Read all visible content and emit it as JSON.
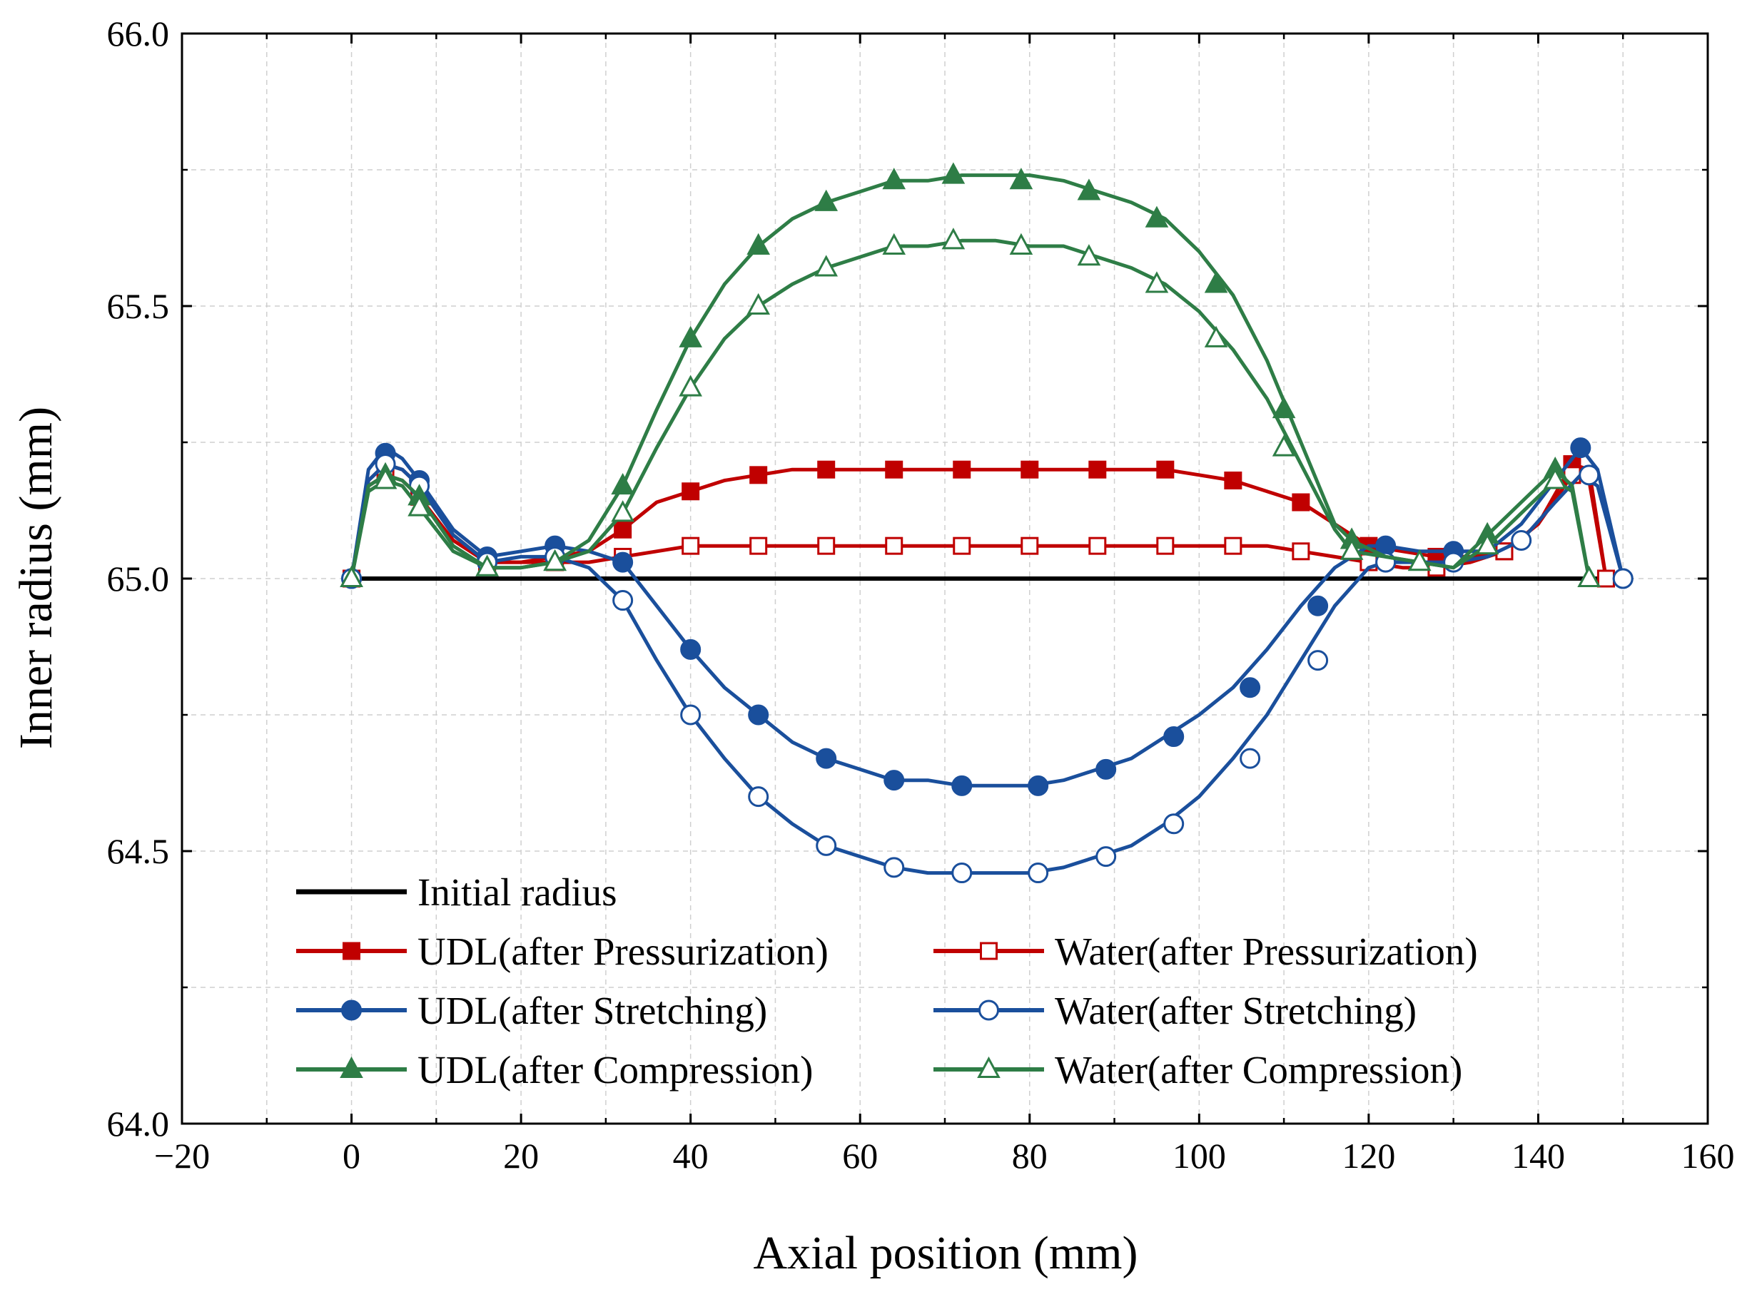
{
  "chart_data": {
    "type": "line",
    "title": "",
    "xlabel": "Axial position (mm)",
    "ylabel": "Inner radius (mm)",
    "xlim": [
      -20,
      160
    ],
    "ylim": [
      64.0,
      66.0
    ],
    "x_ticks": [
      -20,
      0,
      20,
      40,
      60,
      80,
      100,
      120,
      140,
      160
    ],
    "x_tick_labels": [
      "−20",
      "0",
      "20",
      "40",
      "60",
      "80",
      "100",
      "120",
      "140",
      "160"
    ],
    "y_ticks": [
      64.0,
      64.5,
      65.0,
      65.5,
      66.0
    ],
    "y_tick_labels": [
      "64.0",
      "64.5",
      "65.0",
      "65.5",
      "66.0"
    ],
    "grid": true,
    "legend_position": "bottom-left",
    "colors": {
      "black": "#000000",
      "red": "#c00000",
      "blue": "#1a4f9c",
      "green": "#2e7d46"
    },
    "series": [
      {
        "name": "Initial radius",
        "color": "#000000",
        "marker": "none",
        "filled": false,
        "x": [
          0,
          150
        ],
        "y": [
          65.0,
          65.0
        ]
      },
      {
        "name": "UDL(after Pressurization)",
        "color": "#c00000",
        "marker": "square",
        "filled": true,
        "x": [
          0,
          2,
          4,
          6,
          8,
          12,
          16,
          20,
          24,
          28,
          32,
          36,
          40,
          44,
          48,
          52,
          56,
          64,
          72,
          80,
          88,
          96,
          100,
          104,
          108,
          112,
          116,
          120,
          124,
          128,
          132,
          136,
          140,
          144,
          146,
          148
        ],
        "y": [
          65.0,
          65.18,
          65.21,
          65.2,
          65.17,
          65.08,
          65.03,
          65.03,
          65.04,
          65.05,
          65.09,
          65.14,
          65.16,
          65.18,
          65.19,
          65.2,
          65.2,
          65.2,
          65.2,
          65.2,
          65.2,
          65.2,
          65.19,
          65.18,
          65.16,
          65.14,
          65.1,
          65.06,
          65.05,
          65.04,
          65.04,
          65.05,
          65.1,
          65.21,
          65.2,
          65.0
        ],
        "marker_x": [
          0,
          4,
          8,
          16,
          24,
          32,
          40,
          48,
          56,
          64,
          72,
          80,
          88,
          96,
          104,
          112,
          120,
          128,
          136,
          144,
          148
        ],
        "marker_y": [
          65.0,
          65.21,
          65.17,
          65.03,
          65.04,
          65.09,
          65.16,
          65.19,
          65.2,
          65.2,
          65.2,
          65.2,
          65.2,
          65.2,
          65.18,
          65.14,
          65.06,
          65.04,
          65.05,
          65.21,
          65.0
        ]
      },
      {
        "name": "Water(after Pressurization)",
        "color": "#c00000",
        "marker": "square",
        "filled": false,
        "x": [
          0,
          2,
          4,
          6,
          8,
          12,
          16,
          20,
          24,
          28,
          32,
          36,
          40,
          48,
          56,
          64,
          72,
          80,
          88,
          96,
          104,
          108,
          112,
          116,
          120,
          124,
          128,
          132,
          136,
          140,
          144,
          146,
          148
        ],
        "y": [
          65.0,
          65.17,
          65.19,
          65.18,
          65.15,
          65.07,
          65.03,
          65.03,
          65.03,
          65.03,
          65.04,
          65.05,
          65.06,
          65.06,
          65.06,
          65.06,
          65.06,
          65.06,
          65.06,
          65.06,
          65.06,
          65.06,
          65.05,
          65.04,
          65.03,
          65.02,
          65.02,
          65.03,
          65.05,
          65.1,
          65.19,
          65.18,
          65.0
        ],
        "marker_x": [
          0,
          4,
          8,
          16,
          24,
          32,
          40,
          48,
          56,
          64,
          72,
          80,
          88,
          96,
          104,
          112,
          120,
          128,
          136,
          144,
          148
        ],
        "marker_y": [
          65.0,
          65.19,
          65.15,
          65.03,
          65.03,
          65.04,
          65.06,
          65.06,
          65.06,
          65.06,
          65.06,
          65.06,
          65.06,
          65.06,
          65.06,
          65.05,
          65.03,
          65.02,
          65.05,
          65.19,
          65.0
        ]
      },
      {
        "name": "UDL(after Stretching)",
        "color": "#1a4f9c",
        "marker": "circle",
        "filled": true,
        "x": [
          0,
          2,
          4,
          6,
          8,
          12,
          16,
          20,
          24,
          28,
          32,
          36,
          40,
          44,
          48,
          52,
          56,
          60,
          64,
          68,
          72,
          76,
          80,
          84,
          88,
          92,
          96,
          100,
          104,
          108,
          112,
          116,
          120,
          122,
          126,
          130,
          134,
          138,
          142,
          145,
          147,
          150
        ],
        "y": [
          65.0,
          65.2,
          65.24,
          65.22,
          65.18,
          65.09,
          65.04,
          65.05,
          65.06,
          65.05,
          65.03,
          64.95,
          64.87,
          64.8,
          64.75,
          64.7,
          64.67,
          64.65,
          64.63,
          64.63,
          64.62,
          64.62,
          64.62,
          64.63,
          64.65,
          64.67,
          64.71,
          64.75,
          64.8,
          64.87,
          64.95,
          65.02,
          65.06,
          65.06,
          65.05,
          65.05,
          65.05,
          65.1,
          65.18,
          65.24,
          65.2,
          65.0
        ],
        "marker_x": [
          0,
          4,
          8,
          16,
          24,
          32,
          40,
          48,
          56,
          64,
          72,
          81,
          89,
          97,
          106,
          114,
          122,
          130,
          145,
          150
        ],
        "marker_y": [
          65.0,
          65.23,
          65.18,
          65.04,
          65.06,
          65.03,
          64.87,
          64.75,
          64.67,
          64.63,
          64.62,
          64.62,
          64.65,
          64.71,
          64.8,
          64.95,
          65.06,
          65.05,
          65.24,
          65.0
        ]
      },
      {
        "name": "Water(after Stretching)",
        "color": "#1a4f9c",
        "marker": "circle",
        "filled": false,
        "x": [
          0,
          2,
          4,
          6,
          8,
          12,
          16,
          20,
          24,
          28,
          32,
          36,
          40,
          44,
          48,
          52,
          56,
          60,
          64,
          68,
          72,
          76,
          80,
          84,
          88,
          92,
          96,
          100,
          104,
          108,
          112,
          116,
          120,
          122,
          126,
          130,
          134,
          138,
          142,
          145,
          147,
          150
        ],
        "y": [
          65.0,
          65.18,
          65.21,
          65.2,
          65.17,
          65.08,
          65.03,
          65.04,
          65.04,
          65.02,
          64.96,
          64.85,
          64.75,
          64.67,
          64.6,
          64.55,
          64.51,
          64.49,
          64.47,
          64.46,
          64.46,
          64.46,
          64.46,
          64.47,
          64.49,
          64.51,
          64.55,
          64.6,
          64.67,
          64.75,
          64.85,
          64.95,
          65.02,
          65.03,
          65.03,
          65.03,
          65.04,
          65.07,
          65.14,
          65.19,
          65.17,
          65.0
        ],
        "marker_x": [
          0,
          4,
          8,
          16,
          24,
          32,
          40,
          48,
          56,
          64,
          72,
          81,
          89,
          97,
          106,
          114,
          122,
          130,
          138,
          146,
          150
        ],
        "marker_y": [
          65.0,
          65.21,
          65.17,
          65.03,
          65.04,
          64.96,
          64.75,
          64.6,
          64.51,
          64.47,
          64.46,
          64.46,
          64.49,
          64.55,
          64.67,
          64.85,
          65.03,
          65.03,
          65.07,
          65.19,
          65.0
        ]
      },
      {
        "name": "UDL(after Compression)",
        "color": "#2e7d46",
        "marker": "triangle",
        "filled": true,
        "x": [
          0,
          2,
          4,
          6,
          8,
          12,
          16,
          20,
          24,
          28,
          32,
          36,
          40,
          44,
          48,
          52,
          56,
          60,
          64,
          68,
          72,
          76,
          80,
          84,
          88,
          92,
          96,
          100,
          104,
          108,
          112,
          116,
          118,
          122,
          126,
          130,
          134,
          138,
          142,
          144,
          146
        ],
        "y": [
          65.0,
          65.17,
          65.19,
          65.18,
          65.15,
          65.06,
          65.02,
          65.02,
          65.03,
          65.07,
          65.17,
          65.31,
          65.44,
          65.54,
          65.61,
          65.66,
          65.69,
          65.71,
          65.73,
          65.73,
          65.74,
          65.74,
          65.74,
          65.73,
          65.71,
          65.69,
          65.66,
          65.6,
          65.52,
          65.4,
          65.25,
          65.1,
          65.07,
          65.04,
          65.03,
          65.02,
          65.08,
          65.14,
          65.2,
          65.17,
          65.0
        ],
        "marker_x": [
          0,
          4,
          8,
          16,
          24,
          32,
          40,
          48,
          56,
          64,
          71,
          79,
          87,
          95,
          102,
          110,
          118,
          126,
          134,
          142,
          146
        ],
        "marker_y": [
          65.0,
          65.19,
          65.15,
          65.02,
          65.03,
          65.17,
          65.44,
          65.61,
          65.69,
          65.73,
          65.74,
          65.73,
          65.71,
          65.66,
          65.54,
          65.31,
          65.07,
          65.03,
          65.08,
          65.2,
          65.0
        ]
      },
      {
        "name": "Water(after Compression)",
        "color": "#2e7d46",
        "marker": "triangle",
        "filled": false,
        "x": [
          0,
          2,
          4,
          6,
          8,
          12,
          16,
          20,
          24,
          28,
          32,
          36,
          40,
          44,
          48,
          52,
          56,
          60,
          64,
          68,
          72,
          76,
          80,
          84,
          88,
          92,
          96,
          100,
          104,
          108,
          112,
          116,
          118,
          122,
          126,
          130,
          134,
          138,
          142,
          144,
          146
        ],
        "y": [
          65.0,
          65.16,
          65.18,
          65.17,
          65.13,
          65.05,
          65.02,
          65.02,
          65.03,
          65.05,
          65.12,
          65.24,
          65.35,
          65.44,
          65.5,
          65.54,
          65.57,
          65.59,
          65.61,
          65.61,
          65.62,
          65.62,
          65.61,
          65.61,
          65.59,
          65.57,
          65.54,
          65.49,
          65.42,
          65.33,
          65.21,
          65.09,
          65.05,
          65.04,
          65.03,
          65.02,
          65.06,
          65.12,
          65.18,
          65.16,
          65.0
        ],
        "marker_x": [
          0,
          4,
          8,
          16,
          24,
          32,
          40,
          48,
          56,
          64,
          71,
          79,
          87,
          95,
          102,
          110,
          118,
          126,
          134,
          142,
          146
        ],
        "marker_y": [
          65.0,
          65.18,
          65.13,
          65.02,
          65.03,
          65.12,
          65.35,
          65.5,
          65.57,
          65.61,
          65.62,
          65.61,
          65.59,
          65.54,
          65.44,
          65.24,
          65.05,
          65.03,
          65.06,
          65.18,
          65.0
        ]
      }
    ],
    "legend": {
      "rows": [
        [
          "Initial radius"
        ],
        [
          "UDL(after Pressurization)",
          "Water(after Pressurization)"
        ],
        [
          "UDL(after Stretching)",
          "Water(after Stretching)"
        ],
        [
          "UDL(after Compression)",
          "Water(after Compression)"
        ]
      ]
    }
  }
}
